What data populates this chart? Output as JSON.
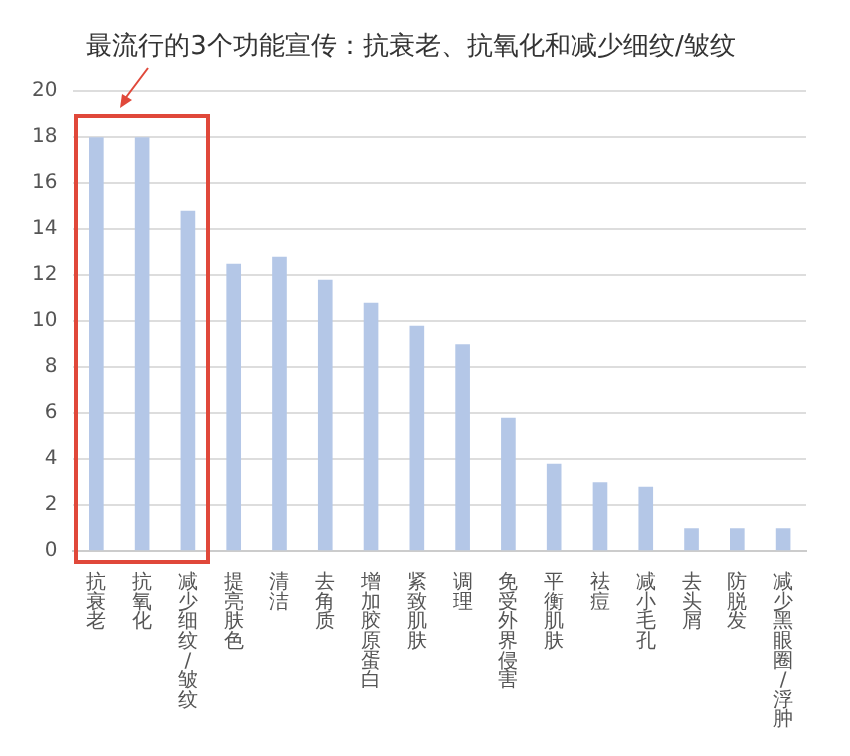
{
  "chart_data": {
    "type": "bar",
    "title": "最流行的3个功能宣传：抗衰老、抗氧化和减少细纹/皱纹",
    "categories": [
      "抗衰老",
      "抗氧化",
      "减少细纹/皱纹",
      "提亮肤色",
      "清洁",
      "去角质",
      "增加胶原蛋白",
      "紧致肌肤",
      "调理",
      "免受外界侵害",
      "平衡肌肤",
      "祛痘",
      "减小毛孔",
      "去头屑",
      "防脱发",
      "减少黑眼圈/浮肿"
    ],
    "values": [
      18,
      18,
      14.8,
      12.5,
      12.8,
      11.8,
      10.8,
      9.8,
      9,
      5.8,
      3.8,
      3,
      2.8,
      1,
      1,
      1
    ],
    "color": "#b4c7e7",
    "ylim": [
      0,
      20
    ],
    "yticks": [
      0,
      2,
      4,
      6,
      8,
      10,
      12,
      14,
      16,
      18,
      20
    ],
    "grid": "y",
    "legend": false
  }
}
